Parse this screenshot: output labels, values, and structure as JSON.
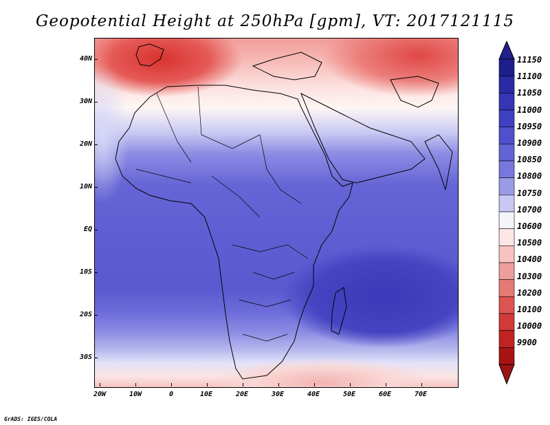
{
  "title": "Geopotential Height at 250hPa [gpm], VT: 2017121115",
  "credit": "GrADS: IGES/COLA",
  "map": {
    "lat_labels": [
      "40N",
      "30N",
      "20N",
      "10N",
      "EQ",
      "10S",
      "20S",
      "30S"
    ],
    "lon_labels": [
      "20W",
      "10W",
      "0",
      "10E",
      "20E",
      "30E",
      "40E",
      "50E",
      "60E",
      "70E"
    ]
  },
  "colorbar": {
    "levels": [
      "11150",
      "11100",
      "11050",
      "11000",
      "10950",
      "10900",
      "10850",
      "10800",
      "10750",
      "10700",
      "10600",
      "10500",
      "10400",
      "10300",
      "10200",
      "10100",
      "10000",
      "9900"
    ],
    "colors": [
      "#1e1e8c",
      "#2a2aa4",
      "#3535b5",
      "#4040c2",
      "#5050cc",
      "#6363d6",
      "#7777de",
      "#9a9ae8",
      "#c8c8f3",
      "#f4f4fb",
      "#fde7e6",
      "#f7c3c1",
      "#f09e9b",
      "#e67875",
      "#dd5452",
      "#d13a38",
      "#c02422",
      "#a81414"
    ]
  },
  "colors": {
    "top_arrow": "#20208a",
    "bottom_arrow": "#9c1414",
    "coast": "#000000"
  }
}
